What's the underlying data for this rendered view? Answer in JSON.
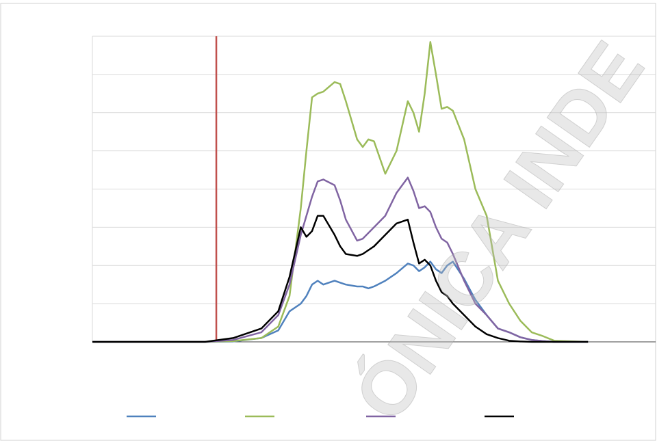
{
  "chart_data": {
    "type": "line",
    "x": [
      0,
      20,
      25,
      30,
      33,
      35,
      37,
      38,
      39,
      40,
      41,
      43,
      44,
      45,
      47,
      48,
      49,
      50,
      52,
      54,
      56,
      57,
      58,
      59,
      60,
      61,
      62,
      63,
      64,
      66,
      68,
      70,
      72,
      74,
      76,
      78,
      80,
      82,
      88
    ],
    "xlim": [
      0,
      100
    ],
    "ylim": [
      0,
      8
    ],
    "yticks": [
      0,
      1,
      2,
      3,
      4,
      5,
      6,
      7,
      8
    ],
    "grid": true,
    "vline": {
      "x": 22,
      "color": "#c0504d"
    },
    "series": [
      {
        "color": "#4f81bd",
        "values": [
          0,
          0,
          0.01,
          0.1,
          0.3,
          0.8,
          1.0,
          1.2,
          1.5,
          1.6,
          1.5,
          1.6,
          1.55,
          1.5,
          1.45,
          1.45,
          1.4,
          1.45,
          1.6,
          1.8,
          2.05,
          2.0,
          1.85,
          1.95,
          2.1,
          1.9,
          1.8,
          2.0,
          2.1,
          1.65,
          1.1,
          0.7,
          0.35,
          0.25,
          0.12,
          0.05,
          0.02,
          0,
          0
        ]
      },
      {
        "color": "#9bbb59",
        "values": [
          0,
          0,
          0.02,
          0.1,
          0.4,
          1.2,
          3.5,
          5.0,
          6.4,
          6.5,
          6.55,
          6.8,
          6.75,
          6.3,
          5.3,
          5.1,
          5.3,
          5.25,
          4.4,
          5.0,
          6.3,
          6.0,
          5.5,
          6.5,
          7.85,
          7.0,
          6.1,
          6.15,
          6.05,
          5.3,
          4.0,
          3.3,
          1.6,
          1.0,
          0.55,
          0.25,
          0.15,
          0.03,
          0
        ]
      },
      {
        "color": "#8064a2",
        "values": [
          0,
          0,
          0.05,
          0.25,
          0.7,
          1.5,
          2.8,
          3.3,
          3.8,
          4.2,
          4.25,
          4.1,
          3.7,
          3.2,
          2.65,
          2.7,
          2.85,
          3.0,
          3.3,
          3.9,
          4.3,
          3.95,
          3.5,
          3.55,
          3.4,
          3.0,
          2.7,
          2.6,
          2.3,
          1.6,
          1.0,
          0.7,
          0.35,
          0.25,
          0.12,
          0.05,
          0.02,
          0,
          0
        ]
      },
      {
        "color": "#000000",
        "values": [
          0,
          0,
          0.1,
          0.35,
          0.8,
          1.7,
          3.0,
          2.75,
          2.9,
          3.3,
          3.3,
          2.8,
          2.5,
          2.3,
          2.25,
          2.3,
          2.4,
          2.5,
          2.8,
          3.1,
          3.2,
          2.6,
          2.05,
          2.15,
          2.0,
          1.6,
          1.3,
          1.2,
          1.0,
          0.7,
          0.4,
          0.2,
          0.1,
          0.03,
          0.01,
          0,
          0,
          0,
          0
        ]
      }
    ],
    "watermark": "ÓNICA INDE"
  }
}
